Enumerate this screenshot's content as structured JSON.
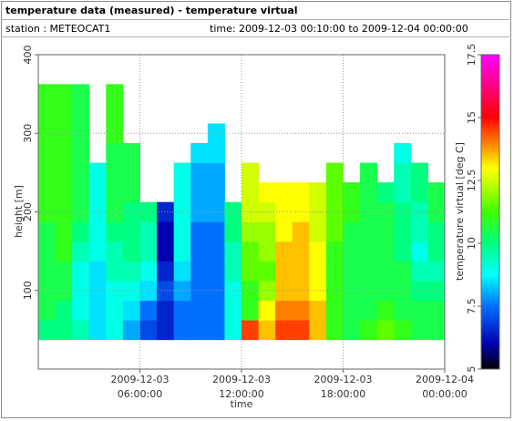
{
  "header": {
    "title": "temperature data (measured) - temperature virtual",
    "station": "station : METEOCAT1",
    "time": "time: 2009-12-03 00:10:00 to 2009-12-04 00:00:00"
  },
  "chart_data": {
    "type": "heatmap",
    "x_label": "time",
    "y_label": "height [m]",
    "z_label": "temperature virtual [deg C]",
    "x": [
      "2009-12-03 00:00:00",
      "2009-12-03 01:00:00",
      "2009-12-03 02:00:00",
      "2009-12-03 03:00:00",
      "2009-12-03 04:00:00",
      "2009-12-03 05:00:00",
      "2009-12-03 06:00:00",
      "2009-12-03 07:00:00",
      "2009-12-03 08:00:00",
      "2009-12-03 09:00:00",
      "2009-12-03 10:00:00",
      "2009-12-03 11:00:00",
      "2009-12-03 12:00:00",
      "2009-12-03 13:00:00",
      "2009-12-03 14:00:00",
      "2009-12-03 15:00:00",
      "2009-12-03 16:00:00",
      "2009-12-03 17:00:00",
      "2009-12-03 18:00:00",
      "2009-12-03 19:00:00",
      "2009-12-03 20:00:00",
      "2009-12-03 21:00:00",
      "2009-12-03 22:00:00",
      "2009-12-03 23:00:00"
    ],
    "y": [
      50,
      75,
      100,
      125,
      150,
      175,
      200,
      225,
      250,
      275,
      300,
      325,
      350
    ],
    "z": [
      [
        10,
        10.5,
        10.5,
        10.5,
        10.5,
        10.5,
        11,
        11,
        11,
        11,
        11,
        11,
        11
      ],
      [
        10,
        10,
        10.5,
        10.5,
        11,
        11,
        11,
        11,
        11,
        11,
        11,
        11,
        11
      ],
      [
        9.5,
        9,
        9,
        9,
        9.5,
        10,
        10.5,
        10.5,
        10.5,
        10.5,
        10.5,
        10.5,
        10.5
      ],
      [
        8.5,
        8.5,
        8.5,
        8.5,
        9,
        9,
        9,
        9,
        9,
        null,
        null,
        null,
        null
      ],
      [
        9,
        9,
        9,
        9.5,
        9.5,
        10,
        10.5,
        10.5,
        10.5,
        10.5,
        11,
        11,
        11
      ],
      [
        8,
        8.5,
        9,
        9.5,
        10,
        10,
        10,
        10.5,
        10.5,
        10.5,
        null,
        null,
        null
      ],
      [
        7,
        7.5,
        8.5,
        9,
        9.5,
        9.5,
        10,
        null,
        null,
        null,
        null,
        null,
        null
      ],
      [
        6.5,
        6.5,
        7,
        6.5,
        6,
        6,
        6.5,
        null,
        null,
        null,
        null,
        null,
        null
      ],
      [
        7.5,
        7.5,
        8,
        8.5,
        9,
        9,
        9,
        9,
        9,
        null,
        null,
        null,
        null
      ],
      [
        7.5,
        7.5,
        7.5,
        7.5,
        7.5,
        7.5,
        8,
        8,
        8,
        8.5,
        null,
        null,
        null
      ],
      [
        7.5,
        7.5,
        7.5,
        7.5,
        7.5,
        7.5,
        8,
        8,
        8,
        8.5,
        8.5,
        null,
        null
      ],
      [
        9,
        9,
        9,
        9.5,
        9.5,
        10,
        10,
        null,
        null,
        null,
        null,
        null,
        null
      ],
      [
        14.5,
        11,
        11,
        11.5,
        11.5,
        12,
        12.5,
        12.5,
        12.5,
        null,
        null,
        null,
        null
      ],
      [
        13.5,
        13,
        12,
        11.5,
        12,
        12,
        12.5,
        13,
        null,
        null,
        null,
        null,
        null
      ],
      [
        14.5,
        14,
        13.5,
        13.5,
        13.5,
        13,
        13,
        13,
        null,
        null,
        null,
        null,
        null
      ],
      [
        14.5,
        14,
        13.5,
        13.5,
        13.5,
        13.5,
        13,
        13,
        null,
        null,
        null,
        null,
        null
      ],
      [
        13.5,
        13.5,
        13,
        13,
        13,
        12.5,
        12.5,
        12.5,
        null,
        null,
        null,
        null,
        null
      ],
      [
        11,
        11,
        11,
        11,
        11,
        11.5,
        11.5,
        11.5,
        11.5,
        null,
        null,
        null,
        null
      ],
      [
        10.5,
        10.5,
        10.5,
        10.5,
        10.5,
        10.5,
        11,
        11,
        null,
        null,
        null,
        null,
        null
      ],
      [
        11,
        10.5,
        10.5,
        10.5,
        10.5,
        10.5,
        10.5,
        10.5,
        10.5,
        null,
        null,
        null,
        null
      ],
      [
        11.5,
        11,
        10.5,
        10.5,
        10.5,
        10.5,
        10.5,
        10,
        null,
        null,
        null,
        null,
        null
      ],
      [
        11,
        10.5,
        10.5,
        10.5,
        10,
        10,
        10,
        9.5,
        9.5,
        9,
        null,
        null,
        null
      ],
      [
        10.5,
        10.5,
        10,
        9.5,
        9,
        9.5,
        9.5,
        10,
        10,
        null,
        null,
        null,
        null
      ],
      [
        10.5,
        10.5,
        10,
        9.5,
        10,
        10,
        10.5,
        10.5,
        null,
        null,
        null,
        null,
        null
      ]
    ],
    "xlim": [
      "2009-12-03 00:00:00",
      "2009-12-04 00:00:00"
    ],
    "xticks": [
      "2009-12-03 06:00:00",
      "2009-12-03 12:00:00",
      "2009-12-03 18:00:00",
      "2009-12-04 00:00:00"
    ],
    "ylim": [
      0,
      400
    ],
    "yticks": [
      100,
      200,
      300,
      400
    ],
    "zlim": [
      5,
      17.5
    ],
    "zticks": [
      5,
      7.5,
      10,
      12.5,
      15,
      17.5
    ],
    "colorscale": [
      [
        5,
        "#000000"
      ],
      [
        6,
        "#0000b0"
      ],
      [
        7.5,
        "#0070ff"
      ],
      [
        8.75,
        "#00ffff"
      ],
      [
        10,
        "#00ff80"
      ],
      [
        11.25,
        "#40ff00"
      ],
      [
        12.5,
        "#d0ff00"
      ],
      [
        13,
        "#ffff00"
      ],
      [
        14,
        "#ff8000"
      ],
      [
        15,
        "#ff0000"
      ],
      [
        16.25,
        "#ff0080"
      ],
      [
        17.5,
        "#ff00ff"
      ]
    ],
    "grid": true
  }
}
